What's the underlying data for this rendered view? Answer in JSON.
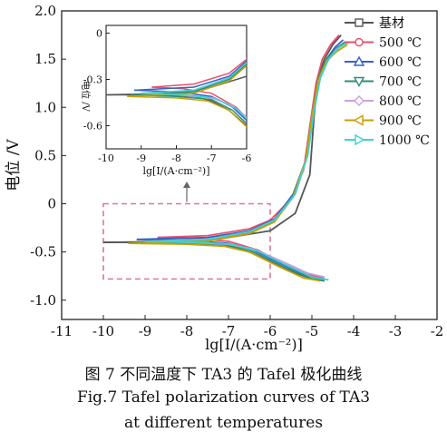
{
  "chart_data": {
    "type": "line",
    "xlabel": "lg[I/(A·cm⁻²)]",
    "ylabel": "电位 /V",
    "xlim": [
      -11,
      -2
    ],
    "ylim": [
      -1.2,
      2.0
    ],
    "xticks": [
      "-11",
      "-10",
      "-9",
      "-8",
      "-7",
      "-6",
      "-5",
      "-4",
      "-3",
      "-2"
    ],
    "yticks": [
      "-1.0",
      "-0.5",
      "0",
      "0.5",
      "1.0",
      "1.5",
      "2.0"
    ],
    "legend_position": "top-right",
    "series": [
      {
        "name": "基材",
        "color": "#555555",
        "marker": "square",
        "cathodic": [
          [
            -4.7,
            -0.8
          ],
          [
            -5.0,
            -0.78
          ],
          [
            -5.5,
            -0.7
          ],
          [
            -6.0,
            -0.6
          ],
          [
            -6.5,
            -0.5
          ],
          [
            -7.0,
            -0.44
          ],
          [
            -7.5,
            -0.41
          ],
          [
            -8.5,
            -0.4
          ],
          [
            -10.0,
            -0.4
          ]
        ],
        "anodic": [
          [
            -10.0,
            -0.4
          ],
          [
            -8.0,
            -0.39
          ],
          [
            -7.0,
            -0.35
          ],
          [
            -6.0,
            -0.28
          ],
          [
            -5.4,
            -0.1
          ],
          [
            -5.05,
            0.3
          ],
          [
            -4.95,
            0.9
          ],
          [
            -4.85,
            1.3
          ],
          [
            -4.7,
            1.5
          ],
          [
            -4.5,
            1.65
          ],
          [
            -4.3,
            1.75
          ]
        ]
      },
      {
        "name": "500 ℃",
        "color": "#e8506a",
        "marker": "circle",
        "cathodic": [
          [
            -4.7,
            -0.77
          ],
          [
            -5.1,
            -0.73
          ],
          [
            -5.7,
            -0.62
          ],
          [
            -6.3,
            -0.48
          ],
          [
            -7.0,
            -0.39
          ],
          [
            -7.8,
            -0.36
          ],
          [
            -8.7,
            -0.35
          ]
        ],
        "anodic": [
          [
            -8.7,
            -0.35
          ],
          [
            -7.5,
            -0.33
          ],
          [
            -6.5,
            -0.26
          ],
          [
            -6.0,
            -0.17
          ],
          [
            -5.5,
            0.05
          ],
          [
            -5.2,
            0.35
          ],
          [
            -5.05,
            0.8
          ],
          [
            -4.9,
            1.25
          ],
          [
            -4.75,
            1.5
          ],
          [
            -4.55,
            1.65
          ],
          [
            -4.35,
            1.75
          ]
        ]
      },
      {
        "name": "600 ℃",
        "color": "#3a5fc8",
        "marker": "triangle",
        "cathodic": [
          [
            -4.75,
            -0.78
          ],
          [
            -5.1,
            -0.75
          ],
          [
            -5.7,
            -0.63
          ],
          [
            -6.4,
            -0.48
          ],
          [
            -7.0,
            -0.41
          ],
          [
            -8.0,
            -0.38
          ],
          [
            -9.2,
            -0.37
          ]
        ],
        "anodic": [
          [
            -9.2,
            -0.37
          ],
          [
            -7.5,
            -0.35
          ],
          [
            -6.5,
            -0.28
          ],
          [
            -5.9,
            -0.16
          ],
          [
            -5.45,
            0.1
          ],
          [
            -5.15,
            0.45
          ],
          [
            -5.0,
            0.9
          ],
          [
            -4.85,
            1.3
          ],
          [
            -4.65,
            1.5
          ],
          [
            -4.45,
            1.62
          ],
          [
            -4.25,
            1.7
          ]
        ]
      },
      {
        "name": "700 ℃",
        "color": "#2e8f78",
        "marker": "triangle-down",
        "cathodic": [
          [
            -4.7,
            -0.8
          ],
          [
            -5.1,
            -0.76
          ],
          [
            -5.7,
            -0.65
          ],
          [
            -6.4,
            -0.5
          ],
          [
            -7.0,
            -0.43
          ],
          [
            -8.0,
            -0.41
          ],
          [
            -9.3,
            -0.4
          ]
        ],
        "anodic": [
          [
            -9.3,
            -0.4
          ],
          [
            -7.5,
            -0.38
          ],
          [
            -6.5,
            -0.3
          ],
          [
            -5.9,
            -0.18
          ],
          [
            -5.45,
            0.08
          ],
          [
            -5.15,
            0.45
          ],
          [
            -5.0,
            0.9
          ],
          [
            -4.85,
            1.3
          ],
          [
            -4.65,
            1.5
          ],
          [
            -4.45,
            1.6
          ],
          [
            -4.2,
            1.68
          ]
        ]
      },
      {
        "name": "800 ℃",
        "color": "#c9a0e0",
        "marker": "diamond",
        "cathodic": [
          [
            -4.7,
            -0.76
          ],
          [
            -5.1,
            -0.72
          ],
          [
            -5.7,
            -0.6
          ],
          [
            -6.4,
            -0.47
          ],
          [
            -7.0,
            -0.42
          ],
          [
            -8.0,
            -0.4
          ],
          [
            -9.0,
            -0.39
          ]
        ],
        "anodic": [
          [
            -9.0,
            -0.39
          ],
          [
            -7.5,
            -0.37
          ],
          [
            -6.5,
            -0.29
          ],
          [
            -5.9,
            -0.17
          ],
          [
            -5.4,
            0.1
          ],
          [
            -5.12,
            0.5
          ],
          [
            -4.98,
            0.95
          ],
          [
            -4.82,
            1.3
          ],
          [
            -4.62,
            1.48
          ],
          [
            -4.42,
            1.6
          ],
          [
            -4.2,
            1.66
          ]
        ]
      },
      {
        "name": "900 ℃",
        "color": "#c8a000",
        "marker": "triangle-left",
        "cathodic": [
          [
            -4.8,
            -0.8
          ],
          [
            -5.2,
            -0.77
          ],
          [
            -5.8,
            -0.65
          ],
          [
            -6.5,
            -0.5
          ],
          [
            -7.1,
            -0.44
          ],
          [
            -8.0,
            -0.42
          ],
          [
            -9.4,
            -0.41
          ]
        ],
        "anodic": [
          [
            -9.4,
            -0.41
          ],
          [
            -7.5,
            -0.39
          ],
          [
            -6.5,
            -0.31
          ],
          [
            -5.9,
            -0.19
          ],
          [
            -5.45,
            0.07
          ],
          [
            -5.15,
            0.45
          ],
          [
            -5.0,
            0.9
          ],
          [
            -4.85,
            1.28
          ],
          [
            -4.65,
            1.48
          ],
          [
            -4.4,
            1.58
          ],
          [
            -4.15,
            1.65
          ]
        ]
      },
      {
        "name": "1000 ℃",
        "color": "#40d0d0",
        "marker": "triangle-right",
        "cathodic": [
          [
            -4.6,
            -0.79
          ],
          [
            -5.0,
            -0.76
          ],
          [
            -5.6,
            -0.64
          ],
          [
            -6.3,
            -0.49
          ],
          [
            -6.9,
            -0.42
          ],
          [
            -7.8,
            -0.4
          ],
          [
            -9.0,
            -0.39
          ]
        ],
        "anodic": [
          [
            -9.0,
            -0.39
          ],
          [
            -7.5,
            -0.37
          ],
          [
            -6.5,
            -0.29
          ],
          [
            -5.9,
            -0.17
          ],
          [
            -5.4,
            0.1
          ],
          [
            -5.1,
            0.5
          ],
          [
            -4.95,
            0.95
          ],
          [
            -4.8,
            1.3
          ],
          [
            -4.6,
            1.5
          ],
          [
            -4.35,
            1.62
          ],
          [
            -4.1,
            1.68
          ]
        ]
      }
    ],
    "inset": {
      "xlim": [
        -10,
        -6
      ],
      "ylim": [
        -0.75,
        0.05
      ],
      "xticks": [
        "-10",
        "-9",
        "-8",
        "-7",
        "-6"
      ],
      "yticks": [
        "0",
        "-0.3",
        "-0.6"
      ],
      "xlabel": "lg[I/(A·cm⁻²)]",
      "ylabel": "电位 /V",
      "zoom_box": {
        "x": [
          -10,
          -6
        ],
        "y": [
          -0.78,
          0.0
        ]
      }
    }
  },
  "caption": {
    "cn": "图 7 不同温度下 TA3 的 Tafel 极化曲线",
    "en_line1": "Fig.7  Tafel polarization curves of TA3",
    "en_line2": "at different temperatures"
  }
}
